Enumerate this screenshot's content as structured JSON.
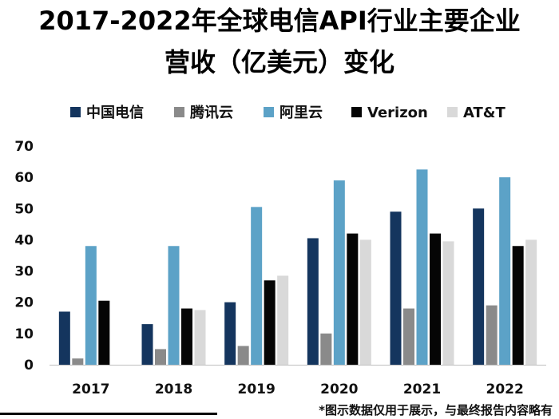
{
  "chart_data": {
    "type": "bar",
    "title_line1": "2017-2022年全球电信API行业主要企业",
    "title_line2": "营收（亿美元）变化",
    "categories": [
      "2017",
      "2018",
      "2019",
      "2020",
      "2021",
      "2022"
    ],
    "series": [
      {
        "name": "中国电信",
        "color": "#14355e",
        "values": [
          17,
          13,
          20,
          40.5,
          49,
          50
        ]
      },
      {
        "name": "腾讯云",
        "color": "#8a8a8a",
        "values": [
          2,
          5,
          6,
          10,
          18,
          19
        ]
      },
      {
        "name": "阿里云",
        "color": "#5ca2c7",
        "values": [
          38,
          38,
          50.5,
          59,
          62.5,
          60
        ]
      },
      {
        "name": "Verizon",
        "color": "#050505",
        "values": [
          20.5,
          18,
          27,
          42,
          42,
          38
        ]
      },
      {
        "name": "AT&T",
        "color": "#d9d9d9",
        "values": [
          null,
          17.5,
          28.5,
          40,
          39.5,
          40
        ]
      }
    ],
    "yticks": [
      0,
      10,
      20,
      30,
      40,
      50,
      60,
      70
    ],
    "ylim": [
      0,
      70
    ],
    "legend_position": "top",
    "grid": false
  },
  "footnote": "*图示数据仅用于展示，与最终报告内容略有"
}
